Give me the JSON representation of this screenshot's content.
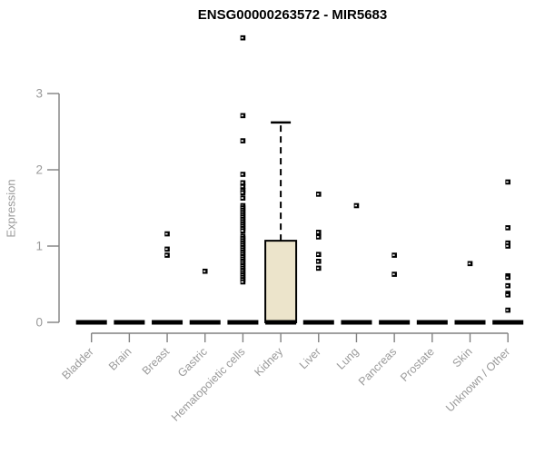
{
  "page": {
    "title": "ENSG00000263572 - MIR5683"
  },
  "colors": {
    "background": "#ffffff",
    "box_fill": "#ece4cb",
    "axis_line": "#818181",
    "label_gray": "#9a9a9a",
    "data_black": "#000000",
    "title_color": "#000000"
  },
  "chart_data": {
    "type": "boxplot",
    "title": "ENSG00000263572 - MIR5683",
    "xlabel": "",
    "ylabel": "Expression",
    "ylim": [
      0,
      3
    ],
    "yticks": [
      "0",
      "1",
      "2",
      "3"
    ],
    "grid": false,
    "legend": false,
    "categories": [
      "Bladder",
      "Brain",
      "Breast",
      "Gastric",
      "Hematopoietic cells",
      "Kidney",
      "Liver",
      "Lung",
      "Pancreas",
      "Prostate",
      "Skin",
      "Unknown / Other"
    ],
    "boxes": [
      {
        "category": "Bladder",
        "q1": 0,
        "median": 0,
        "q3": 0,
        "whisker_low": 0,
        "whisker_high": 0,
        "outliers": []
      },
      {
        "category": "Brain",
        "q1": 0,
        "median": 0,
        "q3": 0,
        "whisker_low": 0,
        "whisker_high": 0,
        "outliers": []
      },
      {
        "category": "Breast",
        "q1": 0,
        "median": 0,
        "q3": 0,
        "whisker_low": 0,
        "whisker_high": 0,
        "outliers": [
          1.16,
          0.96,
          0.88
        ]
      },
      {
        "category": "Gastric",
        "q1": 0,
        "median": 0,
        "q3": 0,
        "whisker_low": 0,
        "whisker_high": 0,
        "outliers": [
          0.67
        ]
      },
      {
        "category": "Hematopoietic cells",
        "q1": 0,
        "median": 0,
        "q3": 0,
        "whisker_low": 0,
        "whisker_high": 0,
        "outliers": [
          3.73,
          2.71,
          2.38,
          1.94,
          1.83,
          1.78,
          1.73,
          1.7,
          1.63,
          1.53,
          1.5,
          1.47,
          1.44,
          1.41,
          1.38,
          1.35,
          1.32,
          1.29,
          1.26,
          1.23,
          1.2,
          1.13,
          1.1,
          1.07,
          1.04,
          1.01,
          0.98,
          0.95,
          0.92,
          0.89,
          0.86,
          0.83,
          0.8,
          0.77,
          0.74,
          0.71,
          0.68,
          0.65,
          0.62,
          0.59,
          0.56,
          0.53
        ]
      },
      {
        "category": "Kidney",
        "q1": 0,
        "median": 0,
        "q3": 1.07,
        "whisker_low": 0,
        "whisker_high": 2.62,
        "outliers": []
      },
      {
        "category": "Liver",
        "q1": 0,
        "median": 0,
        "q3": 0,
        "whisker_low": 0,
        "whisker_high": 0,
        "outliers": [
          1.68,
          1.18,
          1.12,
          0.89,
          0.8,
          0.71
        ]
      },
      {
        "category": "Lung",
        "q1": 0,
        "median": 0,
        "q3": 0,
        "whisker_low": 0,
        "whisker_high": 0,
        "outliers": [
          1.53
        ]
      },
      {
        "category": "Pancreas",
        "q1": 0,
        "median": 0,
        "q3": 0,
        "whisker_low": 0,
        "whisker_high": 0,
        "outliers": [
          0.88,
          0.63
        ]
      },
      {
        "category": "Prostate",
        "q1": 0,
        "median": 0,
        "q3": 0,
        "whisker_low": 0,
        "whisker_high": 0,
        "outliers": []
      },
      {
        "category": "Skin",
        "q1": 0,
        "median": 0,
        "q3": 0,
        "whisker_low": 0,
        "whisker_high": 0,
        "outliers": [
          0.77
        ]
      },
      {
        "category": "Unknown / Other",
        "q1": 0,
        "median": 0,
        "q3": 0,
        "whisker_low": 0,
        "whisker_high": 0,
        "outliers": [
          1.84,
          1.24,
          1.04,
          1.0,
          0.61,
          0.59,
          0.48,
          0.38,
          0.36,
          0.16
        ]
      }
    ]
  }
}
